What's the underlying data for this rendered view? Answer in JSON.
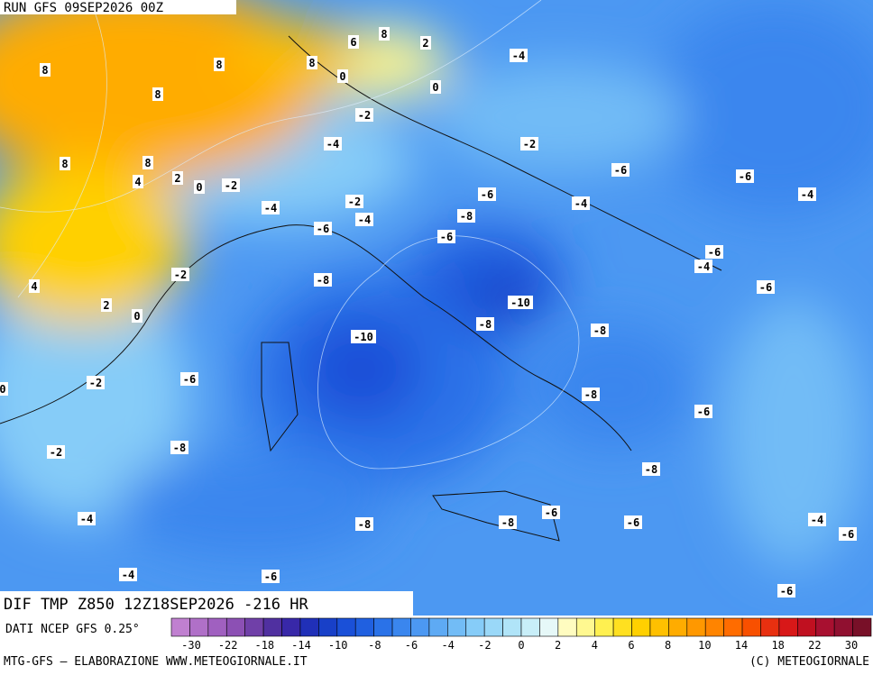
{
  "header": {
    "run": "RUN GFS 09SEP2026 00Z"
  },
  "map": {
    "contour_labels": [
      8,
      8,
      8,
      8,
      8,
      4,
      2,
      0,
      6,
      8,
      2,
      8,
      0,
      0,
      -4,
      -2,
      -4,
      -2,
      -2,
      -4,
      -2,
      -4,
      -6,
      -4,
      -6,
      -6,
      -4,
      -8,
      -6,
      -6,
      -6,
      -4,
      -2,
      -8,
      -6,
      4,
      2,
      0,
      -10,
      -8,
      -8,
      -10,
      0,
      -2,
      -6,
      -8,
      -6,
      -8,
      -2,
      -8,
      -4,
      -8,
      -8,
      -6,
      -6,
      -4,
      -6,
      -4,
      -6,
      -6
    ]
  },
  "field": {
    "title": "DIF TMP Z850 12Z18SEP2026 -216 HR",
    "source": "DATI NCEP GFS 0.25°"
  },
  "scale": {
    "labels": [
      -30,
      -22,
      -18,
      -14,
      -10,
      -8,
      -6,
      -4,
      -2,
      0,
      2,
      4,
      6,
      8,
      10,
      14,
      18,
      22,
      30
    ],
    "colors": [
      "#c080d0",
      "#b070c8",
      "#a060c0",
      "#8c50b4",
      "#7040a8",
      "#5030a0",
      "#3828a8",
      "#2030b8",
      "#1840c8",
      "#1a50d8",
      "#2060e0",
      "#2a72e8",
      "#3a86ee",
      "#4c98f2",
      "#5eaaf4",
      "#72bcf6",
      "#86ccf8",
      "#9ad8f8",
      "#b0e4f8",
      "#c8eef8",
      "#e6f8f8",
      "#fffcc0",
      "#fff890",
      "#fff050",
      "#ffe020",
      "#ffd000",
      "#ffc000",
      "#ffac00",
      "#ff9800",
      "#ff8400",
      "#ff6c00",
      "#f85000",
      "#e83010",
      "#d81818",
      "#c01020",
      "#a81030",
      "#901030",
      "#781028"
    ]
  },
  "footer": {
    "left": "MTG-GFS – ELABORAZIONE WWW.METEOGIORNALE.IT",
    "right": "(C) METEOGIORNALE"
  }
}
